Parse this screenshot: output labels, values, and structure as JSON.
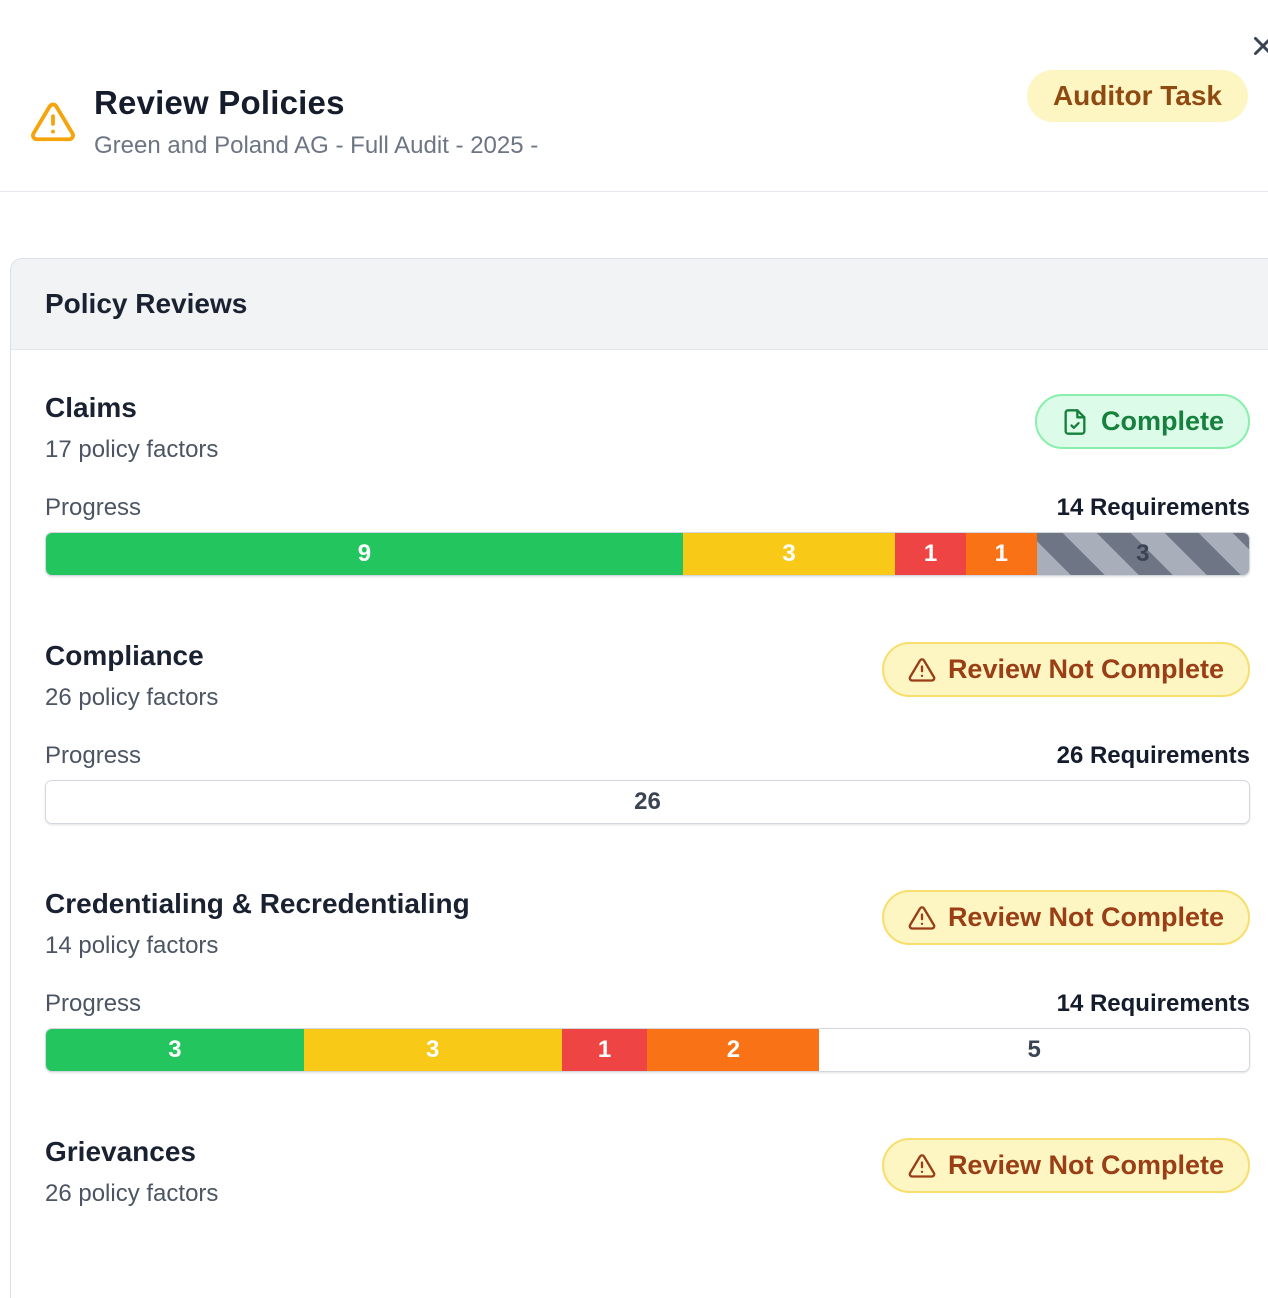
{
  "header": {
    "title": "Review Policies",
    "subtitle": "Green and Poland AG - Full Audit - 2025 -",
    "task_badge": "Auditor Task",
    "warning_icon": "warning-triangle",
    "close_icon": "close-x"
  },
  "card": {
    "title": "Policy Reviews"
  },
  "sections": [
    {
      "name": "Claims",
      "factors": "17 policy factors",
      "status": {
        "type": "complete",
        "label": "Complete",
        "icon": "file-check"
      },
      "progress_label": "Progress",
      "requirements_label": "14 Requirements",
      "total": 17,
      "segments": [
        {
          "value": 9,
          "kind": "green"
        },
        {
          "value": 3,
          "kind": "yellow"
        },
        {
          "value": 1,
          "kind": "red"
        },
        {
          "value": 1,
          "kind": "orange"
        },
        {
          "value": 3,
          "kind": "striped"
        }
      ]
    },
    {
      "name": "Compliance",
      "factors": "26 policy factors",
      "status": {
        "type": "warning",
        "label": "Review Not Complete",
        "icon": "warning-triangle"
      },
      "progress_label": "Progress",
      "requirements_label": "26 Requirements",
      "total": 26,
      "segments": [
        {
          "value": 26,
          "kind": "empty"
        }
      ]
    },
    {
      "name": "Credentialing & Recredentialing",
      "factors": "14 policy factors",
      "status": {
        "type": "warning",
        "label": "Review Not Complete",
        "icon": "warning-triangle"
      },
      "progress_label": "Progress",
      "requirements_label": "14 Requirements",
      "total": 14,
      "segments": [
        {
          "value": 3,
          "kind": "green"
        },
        {
          "value": 3,
          "kind": "yellow"
        },
        {
          "value": 1,
          "kind": "red"
        },
        {
          "value": 2,
          "kind": "orange"
        },
        {
          "value": 5,
          "kind": "empty"
        }
      ]
    },
    {
      "name": "Grievances",
      "factors": "26 policy factors",
      "status": {
        "type": "warning",
        "label": "Review Not Complete",
        "icon": "warning-triangle"
      },
      "segments": null
    }
  ],
  "colors": {
    "green": "#22c55e",
    "yellow": "#f8c916",
    "red": "#ef4444",
    "orange": "#f97316",
    "stripe-light": "#a9afba",
    "stripe-dark": "#6e7585",
    "badge-green-bg": "#dcfce9",
    "badge-green-border": "#8aefac",
    "badge-green-text": "#16803d",
    "badge-yellow-bg": "#fdf6c3",
    "badge-yellow-border": "#f8de6c",
    "badge-warn-text": "#9a3e16",
    "badge-yellow-text": "#8f4a12",
    "header-warning": "#f5a40b"
  }
}
